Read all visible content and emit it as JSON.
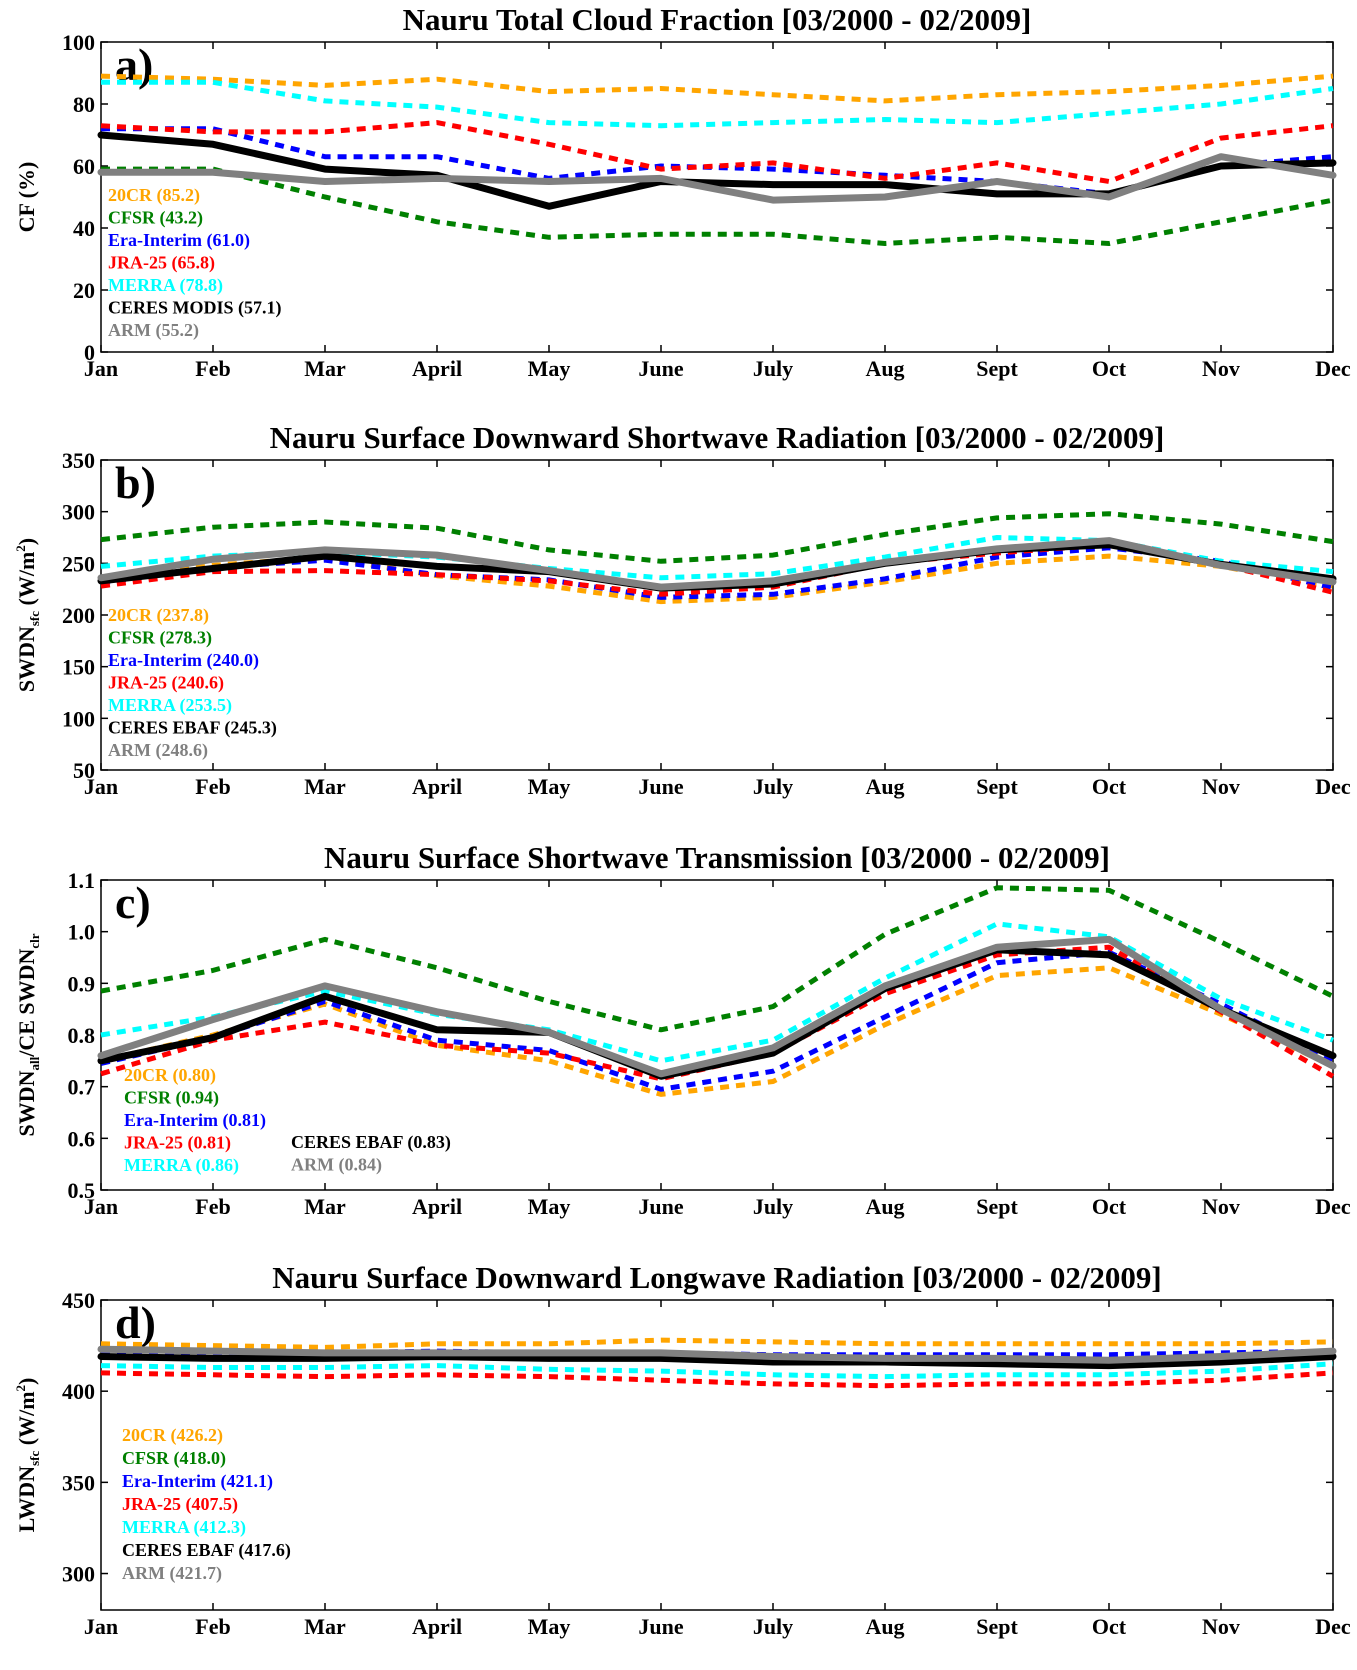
{
  "months": [
    "Jan",
    "Feb",
    "Mar",
    "April",
    "May",
    "June",
    "July",
    "Aug",
    "Sept",
    "Oct",
    "Nov",
    "Dec"
  ],
  "colors": {
    "20CR": "#FFA500",
    "CFSR": "#008000",
    "Era-Interim": "#0000FF",
    "JRA-25": "#FF0000",
    "MERRA": "#00FFFF",
    "CERES": "#000000",
    "ARM": "#808080"
  },
  "chart_data": [
    {
      "type": "line",
      "panel_label": "a)",
      "title": "Nauru Total Cloud Fraction [03/2000 - 02/2009]",
      "ylabel": "CF (%)",
      "ylim": [
        0,
        100
      ],
      "yticks": [
        "0",
        "20",
        "40",
        "60",
        "80",
        "100"
      ],
      "categories": [
        "Jan",
        "Feb",
        "Mar",
        "April",
        "May",
        "June",
        "July",
        "Aug",
        "Sept",
        "Oct",
        "Nov",
        "Dec"
      ],
      "series": [
        {
          "name": "20CR",
          "legend": "20CR (85.2)",
          "color": "#FFA500",
          "dashed": true,
          "values": [
            89,
            88,
            86,
            88,
            84,
            85,
            83,
            81,
            83,
            84,
            86,
            89
          ]
        },
        {
          "name": "CFSR",
          "legend": "CFSR (43.2)",
          "color": "#008000",
          "dashed": true,
          "values": [
            59,
            59,
            50,
            42,
            37,
            38,
            38,
            35,
            37,
            35,
            42,
            49
          ]
        },
        {
          "name": "Era-Interim",
          "legend": "Era-Interim (61.0)",
          "color": "#0000FF",
          "dashed": true,
          "values": [
            72,
            72,
            63,
            63,
            56,
            60,
            59,
            57,
            55,
            51,
            60,
            63
          ]
        },
        {
          "name": "JRA-25",
          "legend": "JRA-25 (65.8)",
          "color": "#FF0000",
          "dashed": true,
          "values": [
            73,
            71,
            71,
            74,
            67,
            59,
            61,
            56,
            61,
            55,
            69,
            73
          ]
        },
        {
          "name": "MERRA",
          "legend": "MERRA (78.8)",
          "color": "#00FFFF",
          "dashed": true,
          "values": [
            87,
            87,
            81,
            79,
            74,
            73,
            74,
            75,
            74,
            77,
            80,
            85
          ]
        },
        {
          "name": "CERES MODIS",
          "legend": "CERES MODIS (57.1)",
          "color": "#000000",
          "dashed": false,
          "values": [
            70,
            67,
            59,
            57,
            47,
            55,
            54,
            54,
            51,
            51,
            60,
            61
          ]
        },
        {
          "name": "ARM",
          "legend": "ARM (55.2)",
          "color": "#808080",
          "dashed": false,
          "values": [
            58,
            58,
            55,
            56,
            55,
            56,
            49,
            50,
            55,
            50,
            63,
            57
          ]
        }
      ]
    },
    {
      "type": "line",
      "panel_label": "b)",
      "title": "Nauru Surface Downward Shortwave Radiation [03/2000 - 02/2009]",
      "ylabel": "SWDN",
      "ylabel_sub": "sfc",
      "ylabel_units": " (W/m",
      "ylabel_sup": "2",
      "ylabel_close": ")",
      "ylim": [
        50,
        350
      ],
      "yticks": [
        "50",
        "100",
        "150",
        "200",
        "250",
        "300",
        "350"
      ],
      "categories": [
        "Jan",
        "Feb",
        "Mar",
        "April",
        "May",
        "June",
        "July",
        "Aug",
        "Sept",
        "Oct",
        "Nov",
        "Dec"
      ],
      "series": [
        {
          "name": "20CR",
          "legend": "20CR (237.8)",
          "color": "#FFA500",
          "dashed": true,
          "values": [
            233,
            248,
            256,
            238,
            228,
            213,
            217,
            232,
            250,
            257,
            247,
            228
          ]
        },
        {
          "name": "CFSR",
          "legend": "CFSR (278.3)",
          "color": "#008000",
          "dashed": true,
          "values": [
            273,
            285,
            290,
            284,
            263,
            252,
            258,
            278,
            294,
            298,
            288,
            271
          ]
        },
        {
          "name": "Era-Interim",
          "legend": "Era-Interim (240.0)",
          "color": "#0000FF",
          "dashed": true,
          "values": [
            231,
            246,
            253,
            239,
            234,
            217,
            220,
            235,
            256,
            265,
            252,
            226
          ]
        },
        {
          "name": "JRA-25",
          "legend": "JRA-25 (240.6)",
          "color": "#FF0000",
          "dashed": true,
          "values": [
            228,
            242,
            243,
            239,
            233,
            220,
            227,
            250,
            260,
            268,
            249,
            222
          ]
        },
        {
          "name": "MERRA",
          "legend": "MERRA (253.5)",
          "color": "#00FFFF",
          "dashed": true,
          "values": [
            247,
            257,
            261,
            256,
            245,
            236,
            240,
            256,
            275,
            272,
            252,
            242
          ]
        },
        {
          "name": "CERES EBAF",
          "legend": "CERES EBAF (245.3)",
          "color": "#000000",
          "dashed": false,
          "values": [
            233,
            245,
            257,
            247,
            242,
            226,
            230,
            250,
            263,
            268,
            249,
            235
          ]
        },
        {
          "name": "ARM",
          "legend": "ARM (248.6)",
          "color": "#808080",
          "dashed": false,
          "values": [
            236,
            254,
            263,
            258,
            243,
            227,
            233,
            251,
            264,
            272,
            248,
            232
          ]
        }
      ]
    },
    {
      "type": "line",
      "panel_label": "c)",
      "title": "Nauru Surface Shortwave Transmission [03/2000 - 02/2009]",
      "ylabel": "SWDN",
      "ylabel_sub": "all",
      "ylabel_mid": "/CE SWDN",
      "ylabel_sub2": "clr",
      "ylim": [
        0.5,
        1.1
      ],
      "yticks": [
        "0.5",
        "0.6",
        "0.7",
        "0.8",
        "0.9",
        "1.0",
        "1.1"
      ],
      "categories": [
        "Jan",
        "Feb",
        "Mar",
        "April",
        "May",
        "June",
        "July",
        "Aug",
        "Sept",
        "Oct",
        "Nov",
        "Dec"
      ],
      "series": [
        {
          "name": "20CR",
          "legend": "20CR (0.80)",
          "color": "#FFA500",
          "dashed": true,
          "values": [
            0.75,
            0.8,
            0.86,
            0.78,
            0.75,
            0.685,
            0.71,
            0.82,
            0.915,
            0.93,
            0.84,
            0.74
          ]
        },
        {
          "name": "CFSR",
          "legend": "CFSR (0.94)",
          "color": "#008000",
          "dashed": true,
          "values": [
            0.885,
            0.925,
            0.985,
            0.93,
            0.865,
            0.81,
            0.855,
            0.995,
            1.085,
            1.08,
            0.98,
            0.875
          ]
        },
        {
          "name": "Era-Interim",
          "legend": "Era-Interim (0.81)",
          "color": "#0000FF",
          "dashed": true,
          "values": [
            0.745,
            0.795,
            0.865,
            0.79,
            0.77,
            0.695,
            0.73,
            0.835,
            0.94,
            0.96,
            0.86,
            0.75
          ]
        },
        {
          "name": "JRA-25",
          "legend": "JRA-25 (0.81)",
          "color": "#FF0000",
          "dashed": true,
          "values": [
            0.725,
            0.79,
            0.825,
            0.78,
            0.765,
            0.715,
            0.765,
            0.88,
            0.955,
            0.97,
            0.845,
            0.72
          ]
        },
        {
          "name": "MERRA",
          "legend": "MERRA (0.86)",
          "color": "#00FFFF",
          "dashed": true,
          "values": [
            0.8,
            0.835,
            0.885,
            0.84,
            0.81,
            0.75,
            0.79,
            0.91,
            1.015,
            0.99,
            0.87,
            0.79
          ]
        },
        {
          "name": "CERES EBAF",
          "legend": "CERES EBAF (0.83)",
          "color": "#000000",
          "dashed": false,
          "values": [
            0.75,
            0.795,
            0.875,
            0.81,
            0.805,
            0.72,
            0.765,
            0.89,
            0.965,
            0.955,
            0.85,
            0.76
          ]
        },
        {
          "name": "ARM",
          "legend": "ARM (0.84)",
          "color": "#808080",
          "dashed": false,
          "values": [
            0.76,
            0.83,
            0.895,
            0.845,
            0.805,
            0.725,
            0.775,
            0.895,
            0.97,
            0.985,
            0.85,
            0.74
          ]
        }
      ]
    },
    {
      "type": "line",
      "panel_label": "d)",
      "title": "Nauru Surface Downward Longwave Radiation [03/2000 - 02/2009]",
      "ylabel": "LWDN",
      "ylabel_sub": "sfc",
      "ylabel_units": " (W/m",
      "ylabel_sup": "2",
      "ylabel_close": ")",
      "ylim": [
        280,
        450
      ],
      "yticks": [
        "300",
        "350",
        "400",
        "450"
      ],
      "categories": [
        "Jan",
        "Feb",
        "Mar",
        "April",
        "May",
        "June",
        "July",
        "Aug",
        "Sept",
        "Oct",
        "Nov",
        "Dec"
      ],
      "series": [
        {
          "name": "20CR",
          "legend": "20CR (426.2)",
          "color": "#FFA500",
          "dashed": true,
          "values": [
            426,
            425,
            424,
            426,
            426,
            428,
            427,
            426,
            426,
            426,
            426,
            427
          ]
        },
        {
          "name": "CFSR",
          "legend": "CFSR (418.0)",
          "color": "#008000",
          "dashed": true,
          "values": [
            419,
            418,
            418,
            419,
            418,
            418,
            418,
            417,
            417,
            417,
            418,
            420
          ]
        },
        {
          "name": "Era-Interim",
          "legend": "Era-Interim (421.1)",
          "color": "#0000FF",
          "dashed": true,
          "values": [
            422,
            421,
            421,
            422,
            421,
            421,
            420,
            420,
            420,
            420,
            421,
            422
          ]
        },
        {
          "name": "JRA-25",
          "legend": "JRA-25 (407.5)",
          "color": "#FF0000",
          "dashed": true,
          "values": [
            410,
            409,
            408,
            409,
            408,
            406,
            404,
            403,
            404,
            404,
            406,
            410
          ]
        },
        {
          "name": "MERRA",
          "legend": "MERRA (412.3)",
          "color": "#00FFFF",
          "dashed": true,
          "values": [
            414,
            413,
            413,
            414,
            412,
            411,
            409,
            408,
            409,
            409,
            411,
            415
          ]
        },
        {
          "name": "CERES EBAF",
          "legend": "CERES EBAF (417.6)",
          "color": "#000000",
          "dashed": false,
          "values": [
            419,
            418,
            418,
            419,
            418,
            418,
            416,
            416,
            415,
            414,
            416,
            419
          ]
        },
        {
          "name": "ARM",
          "legend": "ARM (421.7)",
          "color": "#808080",
          "dashed": false,
          "values": [
            423,
            422,
            421,
            421,
            421,
            421,
            419,
            418,
            418,
            417,
            419,
            422
          ]
        }
      ]
    }
  ]
}
